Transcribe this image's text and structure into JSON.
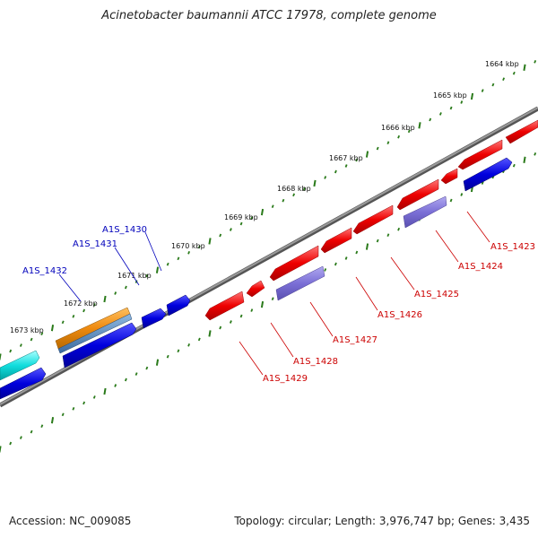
{
  "title": "Acinetobacter baumannii ATCC 17978, complete genome",
  "accession": "Accession: NC_009085",
  "summary": "Topology: circular; Length: 3,976,747 bp; Genes: 3,435",
  "colors": {
    "backbone": "#777777",
    "ticks": "#2a7a1a",
    "forward_gene": "#0000dd",
    "reverse_gene": "#ee0000",
    "rna_purple": "#7b6fd6",
    "orange_feature": "#ee8a10",
    "cyan_feature": "#11dddd",
    "blue_label": "#0000bb",
    "red_label": "#cc0000"
  },
  "kbp_labels": [
    "1664 kbp",
    "1665 kbp",
    "1666 kbp",
    "1667 kbp",
    "1668 kbp",
    "1669 kbp",
    "1670 kbp",
    "1671 kbp",
    "1672 kbp",
    "1673 kbp"
  ],
  "gene_labels_upper": [
    "A1S_1430",
    "A1S_1431",
    "A1S_1432"
  ],
  "gene_labels_lower": [
    "A1S_1423",
    "A1S_1424",
    "A1S_1425",
    "A1S_1426",
    "A1S_1427",
    "A1S_1428",
    "A1S_1429"
  ]
}
